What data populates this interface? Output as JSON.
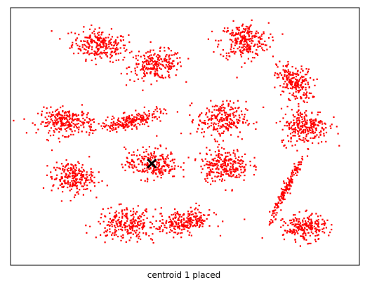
{
  "caption": "centroid 1 placed",
  "colors": {
    "points": "#ff0000",
    "centroid": "#000000",
    "frame": "#000000",
    "background": "#ffffff"
  },
  "chart_data": {
    "type": "scatter",
    "title": "",
    "xlabel": "centroid 1 placed",
    "ylabel": "",
    "axes_ticks": "hidden",
    "xlim": [
      0,
      1
    ],
    "ylim": [
      0,
      1
    ],
    "clusters": [
      {
        "cx": 0.257,
        "cy": 0.855,
        "sx": 0.04,
        "sy": 0.03,
        "corr": -0.2,
        "n": 260
      },
      {
        "cx": 0.418,
        "cy": 0.777,
        "sx": 0.038,
        "sy": 0.028,
        "corr": 0.1,
        "n": 240
      },
      {
        "cx": 0.669,
        "cy": 0.87,
        "sx": 0.035,
        "sy": 0.035,
        "corr": 0.0,
        "n": 260
      },
      {
        "cx": 0.813,
        "cy": 0.71,
        "sx": 0.025,
        "sy": 0.035,
        "corr": -0.3,
        "n": 220
      },
      {
        "cx": 0.159,
        "cy": 0.558,
        "sx": 0.04,
        "sy": 0.025,
        "corr": 0.0,
        "n": 260
      },
      {
        "cx": 0.345,
        "cy": 0.56,
        "sx": 0.045,
        "sy": 0.02,
        "corr": 0.7,
        "n": 220
      },
      {
        "cx": 0.605,
        "cy": 0.565,
        "sx": 0.035,
        "sy": 0.035,
        "corr": 0.0,
        "n": 240
      },
      {
        "cx": 0.843,
        "cy": 0.54,
        "sx": 0.035,
        "sy": 0.035,
        "corr": 0.0,
        "n": 260
      },
      {
        "cx": 0.178,
        "cy": 0.34,
        "sx": 0.03,
        "sy": 0.03,
        "corr": 0.0,
        "n": 240
      },
      {
        "cx": 0.405,
        "cy": 0.395,
        "sx": 0.038,
        "sy": 0.03,
        "corr": 0.0,
        "n": 240
      },
      {
        "cx": 0.613,
        "cy": 0.39,
        "sx": 0.035,
        "sy": 0.032,
        "corr": 0.0,
        "n": 260
      },
      {
        "cx": 0.793,
        "cy": 0.3,
        "sx": 0.025,
        "sy": 0.065,
        "corr": 0.97,
        "n": 170
      },
      {
        "cx": 0.333,
        "cy": 0.16,
        "sx": 0.042,
        "sy": 0.03,
        "corr": 0.0,
        "n": 260
      },
      {
        "cx": 0.499,
        "cy": 0.168,
        "sx": 0.04,
        "sy": 0.025,
        "corr": 0.3,
        "n": 240
      },
      {
        "cx": 0.843,
        "cy": 0.145,
        "sx": 0.03,
        "sy": 0.025,
        "corr": 0.0,
        "n": 230
      }
    ],
    "centroids": [
      {
        "label": "centroid 1",
        "x": 0.405,
        "y": 0.395,
        "marker": "X"
      }
    ]
  }
}
